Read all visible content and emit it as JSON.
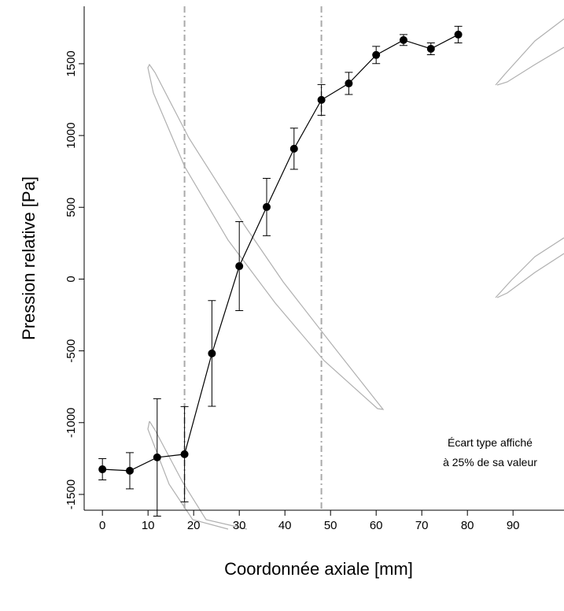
{
  "chart_data": {
    "type": "line",
    "x_label": "Coordonnée axiale  [mm]",
    "y_label": "Pression relative  [Pa]",
    "annotation": [
      "Écart type affiché",
      "à 25% de sa valeur"
    ],
    "x": [
      0,
      6,
      12,
      18,
      24,
      30,
      36,
      42,
      48,
      54,
      60,
      66,
      72,
      78
    ],
    "values": [
      -1325,
      -1335,
      -1242,
      -1220,
      -518,
      90,
      502,
      908,
      1248,
      1363,
      1561,
      1665,
      1604,
      1703
    ],
    "errors": [
      74,
      126,
      409,
      332,
      368,
      310,
      200,
      143,
      107,
      77,
      60,
      38,
      41,
      58
    ],
    "color": "#000000",
    "vlines": [
      18,
      48
    ],
    "xlim": [
      -4,
      101
    ],
    "ylim": [
      -1610,
      1900
    ],
    "xticks": [
      0,
      10,
      20,
      30,
      40,
      50,
      60,
      70,
      80,
      90
    ],
    "yticks": [
      -1500,
      -1000,
      -500,
      0,
      500,
      1000,
      1500
    ]
  }
}
